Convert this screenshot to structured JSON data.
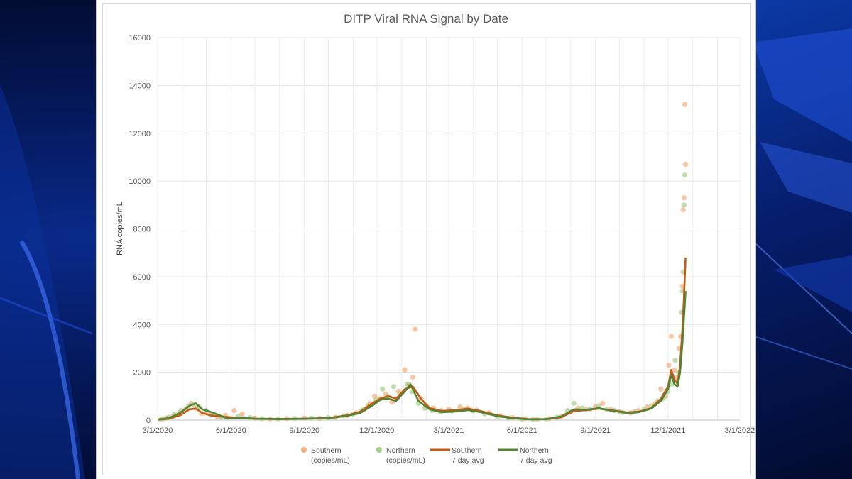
{
  "chart_data": {
    "type": "scatter",
    "title": "DITP Viral RNA Signal by Date",
    "xlabel": "",
    "ylabel": "RNA copies/mL",
    "ylim": [
      0,
      16000
    ],
    "xlim": [
      "2020-03-01",
      "2022-03-01"
    ],
    "y_ticks": [
      "0",
      "2000",
      "4000",
      "6000",
      "8000",
      "10000",
      "12000",
      "14000",
      "16000"
    ],
    "x_ticks": [
      "3/1/2020",
      "6/1/2020",
      "9/1/2020",
      "12/1/2020",
      "3/1/2021",
      "6/1/2021",
      "9/1/2021",
      "12/1/2021",
      "3/1/2022"
    ],
    "grid": true,
    "legend_position": "bottom",
    "series": [
      {
        "name": "Southern (copies/mL)",
        "label_lines": [
          "Southern",
          "(copies/mL)"
        ],
        "kind": "scatter",
        "color": "#f4b183",
        "points": [
          [
            "2020-03-05",
            40
          ],
          [
            "2020-03-12",
            80
          ],
          [
            "2020-03-20",
            150
          ],
          [
            "2020-03-28",
            300
          ],
          [
            "2020-04-05",
            450
          ],
          [
            "2020-04-12",
            700
          ],
          [
            "2020-04-18",
            500
          ],
          [
            "2020-04-25",
            280
          ],
          [
            "2020-05-05",
            300
          ],
          [
            "2020-05-15",
            150
          ],
          [
            "2020-05-25",
            200
          ],
          [
            "2020-06-05",
            400
          ],
          [
            "2020-06-15",
            250
          ],
          [
            "2020-07-01",
            80
          ],
          [
            "2020-07-20",
            50
          ],
          [
            "2020-08-10",
            60
          ],
          [
            "2020-09-01",
            90
          ],
          [
            "2020-09-20",
            70
          ],
          [
            "2020-10-10",
            120
          ],
          [
            "2020-10-25",
            200
          ],
          [
            "2020-11-05",
            300
          ],
          [
            "2020-11-15",
            450
          ],
          [
            "2020-11-22",
            700
          ],
          [
            "2020-11-28",
            1000
          ],
          [
            "2020-12-05",
            900
          ],
          [
            "2020-12-12",
            1100
          ],
          [
            "2020-12-20",
            750
          ],
          [
            "2020-12-28",
            1200
          ],
          [
            "2021-01-05",
            2100
          ],
          [
            "2021-01-10",
            1500
          ],
          [
            "2021-01-15",
            1800
          ],
          [
            "2021-01-18",
            3800
          ],
          [
            "2021-01-25",
            900
          ],
          [
            "2021-02-01",
            600
          ],
          [
            "2021-02-10",
            500
          ],
          [
            "2021-02-20",
            400
          ],
          [
            "2021-03-01",
            450
          ],
          [
            "2021-03-15",
            550
          ],
          [
            "2021-03-25",
            500
          ],
          [
            "2021-04-05",
            420
          ],
          [
            "2021-04-20",
            300
          ],
          [
            "2021-05-05",
            180
          ],
          [
            "2021-05-20",
            100
          ],
          [
            "2021-06-05",
            60
          ],
          [
            "2021-06-20",
            40
          ],
          [
            "2021-07-05",
            60
          ],
          [
            "2021-07-20",
            150
          ],
          [
            "2021-08-01",
            350
          ],
          [
            "2021-08-10",
            500
          ],
          [
            "2021-08-20",
            450
          ],
          [
            "2021-09-01",
            550
          ],
          [
            "2021-09-10",
            700
          ],
          [
            "2021-09-20",
            450
          ],
          [
            "2021-10-01",
            350
          ],
          [
            "2021-10-15",
            300
          ],
          [
            "2021-10-25",
            400
          ],
          [
            "2021-11-05",
            550
          ],
          [
            "2021-11-15",
            700
          ],
          [
            "2021-11-22",
            1300
          ],
          [
            "2021-11-28",
            1000
          ],
          [
            "2021-12-02",
            2300
          ],
          [
            "2021-12-05",
            3500
          ],
          [
            "2021-12-09",
            2100
          ],
          [
            "2021-12-12",
            1800
          ],
          [
            "2021-12-15",
            3000
          ],
          [
            "2021-12-17",
            3500
          ],
          [
            "2021-12-19",
            5600
          ],
          [
            "2021-12-20",
            8800
          ],
          [
            "2021-12-21",
            9300
          ],
          [
            "2021-12-22",
            13200
          ],
          [
            "2021-12-23",
            10700
          ]
        ]
      },
      {
        "name": "Northern (copies/mL)",
        "label_lines": [
          "Northern",
          "(copies/mL)"
        ],
        "kind": "scatter",
        "color": "#a9d18e",
        "points": [
          [
            "2020-03-08",
            60
          ],
          [
            "2020-03-15",
            120
          ],
          [
            "2020-03-22",
            250
          ],
          [
            "2020-03-30",
            400
          ],
          [
            "2020-04-08",
            550
          ],
          [
            "2020-04-15",
            650
          ],
          [
            "2020-04-22",
            550
          ],
          [
            "2020-05-01",
            400
          ],
          [
            "2020-05-10",
            250
          ],
          [
            "2020-05-20",
            120
          ],
          [
            "2020-06-10",
            150
          ],
          [
            "2020-06-25",
            100
          ],
          [
            "2020-07-10",
            60
          ],
          [
            "2020-07-30",
            50
          ],
          [
            "2020-08-20",
            70
          ],
          [
            "2020-09-10",
            80
          ],
          [
            "2020-10-01",
            100
          ],
          [
            "2020-10-20",
            180
          ],
          [
            "2020-11-01",
            250
          ],
          [
            "2020-11-12",
            400
          ],
          [
            "2020-11-20",
            600
          ],
          [
            "2020-11-30",
            850
          ],
          [
            "2020-12-08",
            1300
          ],
          [
            "2020-12-15",
            1000
          ],
          [
            "2020-12-22",
            1400
          ],
          [
            "2020-12-30",
            1100
          ],
          [
            "2021-01-08",
            1500
          ],
          [
            "2021-01-14",
            1200
          ],
          [
            "2021-01-22",
            700
          ],
          [
            "2021-01-30",
            500
          ],
          [
            "2021-02-08",
            400
          ],
          [
            "2021-02-18",
            350
          ],
          [
            "2021-03-05",
            380
          ],
          [
            "2021-03-20",
            450
          ],
          [
            "2021-04-01",
            380
          ],
          [
            "2021-04-15",
            260
          ],
          [
            "2021-05-01",
            150
          ],
          [
            "2021-05-15",
            80
          ],
          [
            "2021-06-01",
            40
          ],
          [
            "2021-06-15",
            30
          ],
          [
            "2021-07-01",
            50
          ],
          [
            "2021-07-15",
            120
          ],
          [
            "2021-07-28",
            400
          ],
          [
            "2021-08-05",
            700
          ],
          [
            "2021-08-15",
            500
          ],
          [
            "2021-08-25",
            450
          ],
          [
            "2021-09-05",
            600
          ],
          [
            "2021-09-15",
            450
          ],
          [
            "2021-09-25",
            400
          ],
          [
            "2021-10-05",
            320
          ],
          [
            "2021-10-20",
            350
          ],
          [
            "2021-11-01",
            450
          ],
          [
            "2021-11-10",
            600
          ],
          [
            "2021-11-18",
            800
          ],
          [
            "2021-11-25",
            900
          ],
          [
            "2021-12-01",
            1200
          ],
          [
            "2021-12-06",
            1500
          ],
          [
            "2021-12-10",
            2500
          ],
          [
            "2021-12-14",
            2000
          ],
          [
            "2021-12-18",
            4500
          ],
          [
            "2021-12-19",
            5400
          ],
          [
            "2021-12-20",
            6200
          ],
          [
            "2021-12-21",
            9000
          ],
          [
            "2021-12-22",
            10250
          ]
        ]
      },
      {
        "name": "Southern 7 day avg",
        "label_lines": [
          "Southern",
          "7 day avg"
        ],
        "kind": "line",
        "color": "#c55a11",
        "points": [
          [
            "2020-03-01",
            20
          ],
          [
            "2020-03-15",
            60
          ],
          [
            "2020-03-29",
            200
          ],
          [
            "2020-04-10",
            450
          ],
          [
            "2020-04-18",
            480
          ],
          [
            "2020-04-26",
            300
          ],
          [
            "2020-05-06",
            200
          ],
          [
            "2020-05-18",
            150
          ],
          [
            "2020-06-01",
            120
          ],
          [
            "2020-07-01",
            60
          ],
          [
            "2020-08-01",
            50
          ],
          [
            "2020-09-01",
            60
          ],
          [
            "2020-10-01",
            90
          ],
          [
            "2020-10-25",
            200
          ],
          [
            "2020-11-10",
            350
          ],
          [
            "2020-11-25",
            700
          ],
          [
            "2020-12-05",
            900
          ],
          [
            "2020-12-15",
            1000
          ],
          [
            "2020-12-25",
            900
          ],
          [
            "2021-01-05",
            1300
          ],
          [
            "2021-01-15",
            1400
          ],
          [
            "2021-01-25",
            900
          ],
          [
            "2021-02-05",
            500
          ],
          [
            "2021-02-20",
            380
          ],
          [
            "2021-03-10",
            420
          ],
          [
            "2021-03-25",
            480
          ],
          [
            "2021-04-10",
            380
          ],
          [
            "2021-05-01",
            200
          ],
          [
            "2021-05-20",
            100
          ],
          [
            "2021-06-10",
            40
          ],
          [
            "2021-07-01",
            40
          ],
          [
            "2021-07-20",
            120
          ],
          [
            "2021-08-05",
            380
          ],
          [
            "2021-08-20",
            420
          ],
          [
            "2021-09-05",
            480
          ],
          [
            "2021-09-20",
            420
          ],
          [
            "2021-10-10",
            320
          ],
          [
            "2021-10-25",
            350
          ],
          [
            "2021-11-10",
            500
          ],
          [
            "2021-11-22",
            900
          ],
          [
            "2021-12-01",
            1400
          ],
          [
            "2021-12-05",
            2100
          ],
          [
            "2021-12-09",
            1700
          ],
          [
            "2021-12-13",
            1500
          ],
          [
            "2021-12-16",
            2300
          ],
          [
            "2021-12-19",
            3800
          ],
          [
            "2021-12-21",
            5200
          ],
          [
            "2021-12-23",
            6800
          ]
        ]
      },
      {
        "name": "Northern 7 day avg",
        "label_lines": [
          "Northern",
          "7 day avg"
        ],
        "kind": "line",
        "color": "#548235",
        "points": [
          [
            "2020-03-01",
            20
          ],
          [
            "2020-03-15",
            80
          ],
          [
            "2020-03-29",
            300
          ],
          [
            "2020-04-10",
            600
          ],
          [
            "2020-04-18",
            700
          ],
          [
            "2020-04-26",
            450
          ],
          [
            "2020-05-06",
            350
          ],
          [
            "2020-05-18",
            200
          ],
          [
            "2020-05-28",
            60
          ],
          [
            "2020-06-10",
            100
          ],
          [
            "2020-07-01",
            60
          ],
          [
            "2020-08-01",
            40
          ],
          [
            "2020-09-01",
            60
          ],
          [
            "2020-10-01",
            80
          ],
          [
            "2020-10-25",
            180
          ],
          [
            "2020-11-10",
            300
          ],
          [
            "2020-11-25",
            600
          ],
          [
            "2020-12-05",
            850
          ],
          [
            "2020-12-15",
            900
          ],
          [
            "2020-12-25",
            800
          ],
          [
            "2021-01-05",
            1200
          ],
          [
            "2021-01-12",
            1500
          ],
          [
            "2021-01-22",
            800
          ],
          [
            "2021-02-05",
            450
          ],
          [
            "2021-02-20",
            330
          ],
          [
            "2021-03-10",
            360
          ],
          [
            "2021-03-25",
            420
          ],
          [
            "2021-04-10",
            330
          ],
          [
            "2021-05-01",
            170
          ],
          [
            "2021-05-20",
            80
          ],
          [
            "2021-06-10",
            30
          ],
          [
            "2021-07-01",
            40
          ],
          [
            "2021-07-20",
            150
          ],
          [
            "2021-08-05",
            450
          ],
          [
            "2021-08-20",
            430
          ],
          [
            "2021-09-05",
            500
          ],
          [
            "2021-09-20",
            400
          ],
          [
            "2021-10-10",
            300
          ],
          [
            "2021-10-25",
            330
          ],
          [
            "2021-11-10",
            480
          ],
          [
            "2021-11-22",
            800
          ],
          [
            "2021-12-01",
            1300
          ],
          [
            "2021-12-05",
            1900
          ],
          [
            "2021-12-09",
            1500
          ],
          [
            "2021-12-13",
            1400
          ],
          [
            "2021-12-16",
            2000
          ],
          [
            "2021-12-19",
            3200
          ],
          [
            "2021-12-21",
            4300
          ],
          [
            "2021-12-23",
            5400
          ]
        ]
      }
    ]
  }
}
